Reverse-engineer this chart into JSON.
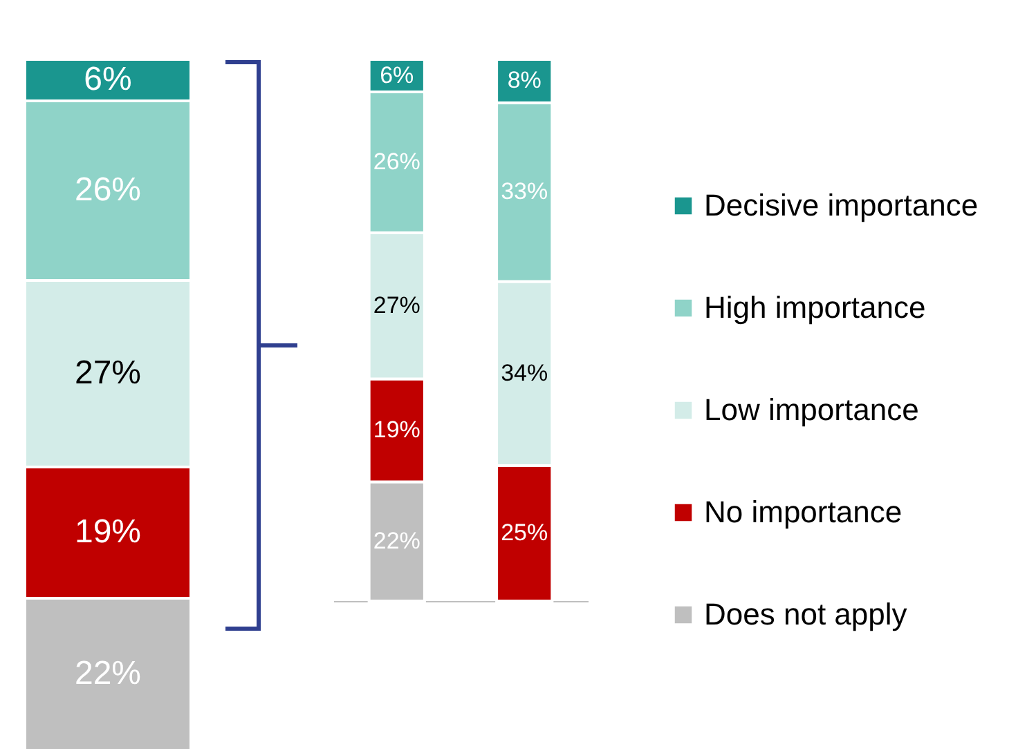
{
  "chart_data": [
    {
      "type": "bar",
      "stacked": true,
      "legend": false,
      "categories": [
        null
      ],
      "series": [
        {
          "color": "#bfbfbf",
          "values": [
            22
          ],
          "value_labels": [
            "22%"
          ]
        },
        {
          "color": "#c00000",
          "values": [
            19
          ],
          "value_labels": [
            "19%"
          ]
        },
        {
          "color": "#d3ece8",
          "values": [
            27
          ],
          "value_labels": [
            "27%"
          ]
        },
        {
          "color": "#8fd3c8",
          "values": [
            26
          ],
          "value_labels": [
            "26%"
          ]
        },
        {
          "color": "#1a968f",
          "values": [
            6
          ],
          "value_labels": [
            "6%"
          ]
        }
      ]
    },
    {
      "type": "bar",
      "stacked": true,
      "legend": "right",
      "categories": [
        null,
        null
      ],
      "series": [
        {
          "name": "Does not apply",
          "color": "#bfbfbf",
          "values": [
            22,
            null
          ],
          "value_labels": [
            "22%",
            null
          ]
        },
        {
          "name": "No importance",
          "color": "#c00000",
          "values": [
            19,
            25
          ],
          "value_labels": [
            "19%",
            "25%"
          ]
        },
        {
          "name": "Low importance",
          "color": "#d3ece8",
          "values": [
            27,
            34
          ],
          "value_labels": [
            "27%",
            "34%"
          ]
        },
        {
          "name": "High importance",
          "color": "#8fd3c8",
          "values": [
            26,
            33
          ],
          "value_labels": [
            "26%",
            "33%"
          ]
        },
        {
          "name": "Decisive importance",
          "color": "#1a968f",
          "values": [
            6,
            8
          ],
          "value_labels": [
            "6%",
            "8%"
          ]
        }
      ]
    }
  ]
}
